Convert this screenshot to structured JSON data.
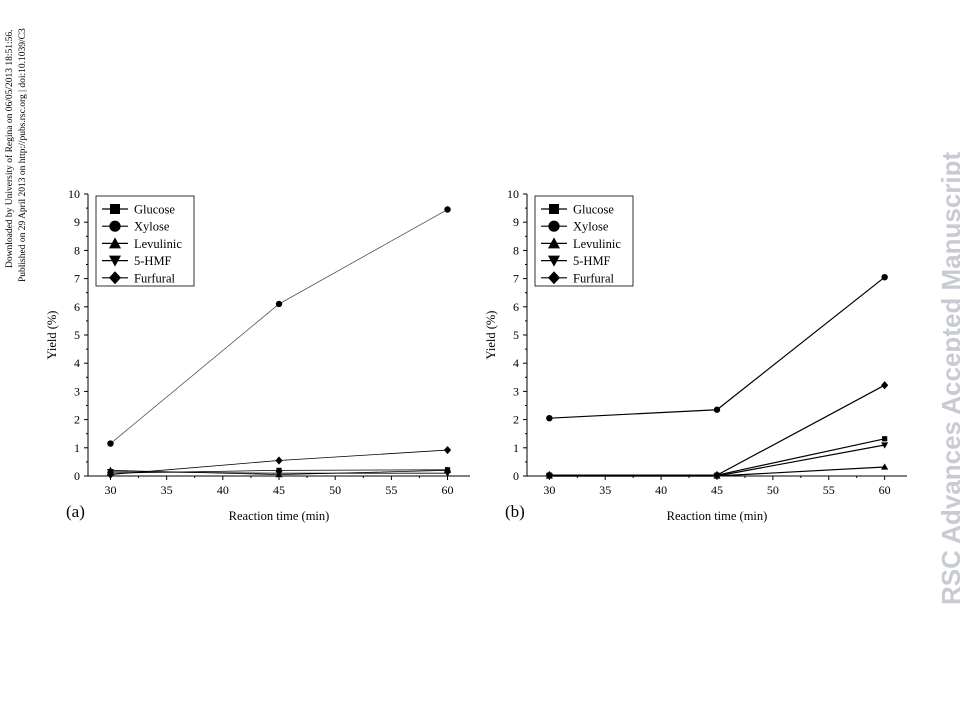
{
  "side_note": {
    "line1": "Downloaded by University of Regina on 06/05/2013 18:51:56.",
    "line2": "Published on 29 April 2013 on http://pubs.rsc.org | doi:10.1039/C3"
  },
  "watermark": "RSC Advances Accepted Manuscript",
  "colors": {
    "line": "#000000",
    "xylose_line_a": "#555555",
    "watermark": "#c9cbd3"
  },
  "chart_data": [
    {
      "type": "line",
      "panel_label": "(a)",
      "xlabel": "Reaction time (min)",
      "ylabel": "Yield (%)",
      "xlim": [
        28,
        62
      ],
      "ylim": [
        0,
        10
      ],
      "xticks": [
        30,
        35,
        40,
        45,
        50,
        55,
        60
      ],
      "yticks": [
        0,
        1,
        2,
        3,
        4,
        5,
        6,
        7,
        8,
        9,
        10
      ],
      "legend_position": "top-left",
      "x": [
        30,
        45,
        60
      ],
      "series": [
        {
          "name": "Glucose",
          "marker": "square",
          "values": [
            0.1,
            0.2,
            0.22
          ]
        },
        {
          "name": "Xylose",
          "marker": "circle",
          "values": [
            1.15,
            6.1,
            9.45
          ]
        },
        {
          "name": "Levulinic",
          "marker": "triangle-up",
          "values": [
            0.2,
            0.05,
            0.2
          ]
        },
        {
          "name": "5-HMF",
          "marker": "triangle-down",
          "values": [
            0.15,
            0.1,
            0.1
          ]
        },
        {
          "name": "Furfural",
          "marker": "diamond",
          "values": [
            0.05,
            0.55,
            0.92
          ]
        }
      ]
    },
    {
      "type": "line",
      "panel_label": "(b)",
      "xlabel": "Reaction time (min)",
      "ylabel": "Yield (%)",
      "xlim": [
        28,
        62
      ],
      "ylim": [
        0,
        10
      ],
      "xticks": [
        30,
        35,
        40,
        45,
        50,
        55,
        60
      ],
      "yticks": [
        0,
        1,
        2,
        3,
        4,
        5,
        6,
        7,
        8,
        9,
        10
      ],
      "legend_position": "top-left",
      "x": [
        30,
        45,
        60
      ],
      "series": [
        {
          "name": "Glucose",
          "marker": "square",
          "values": [
            0.03,
            0.03,
            1.32
          ]
        },
        {
          "name": "Xylose",
          "marker": "circle",
          "values": [
            2.05,
            2.35,
            7.05
          ]
        },
        {
          "name": "Levulinic",
          "marker": "triangle-up",
          "values": [
            0.0,
            0.0,
            0.32
          ]
        },
        {
          "name": "5-HMF",
          "marker": "triangle-down",
          "values": [
            0.0,
            0.0,
            1.1
          ]
        },
        {
          "name": "Furfural",
          "marker": "diamond",
          "values": [
            0.03,
            0.03,
            3.22
          ]
        }
      ]
    }
  ]
}
